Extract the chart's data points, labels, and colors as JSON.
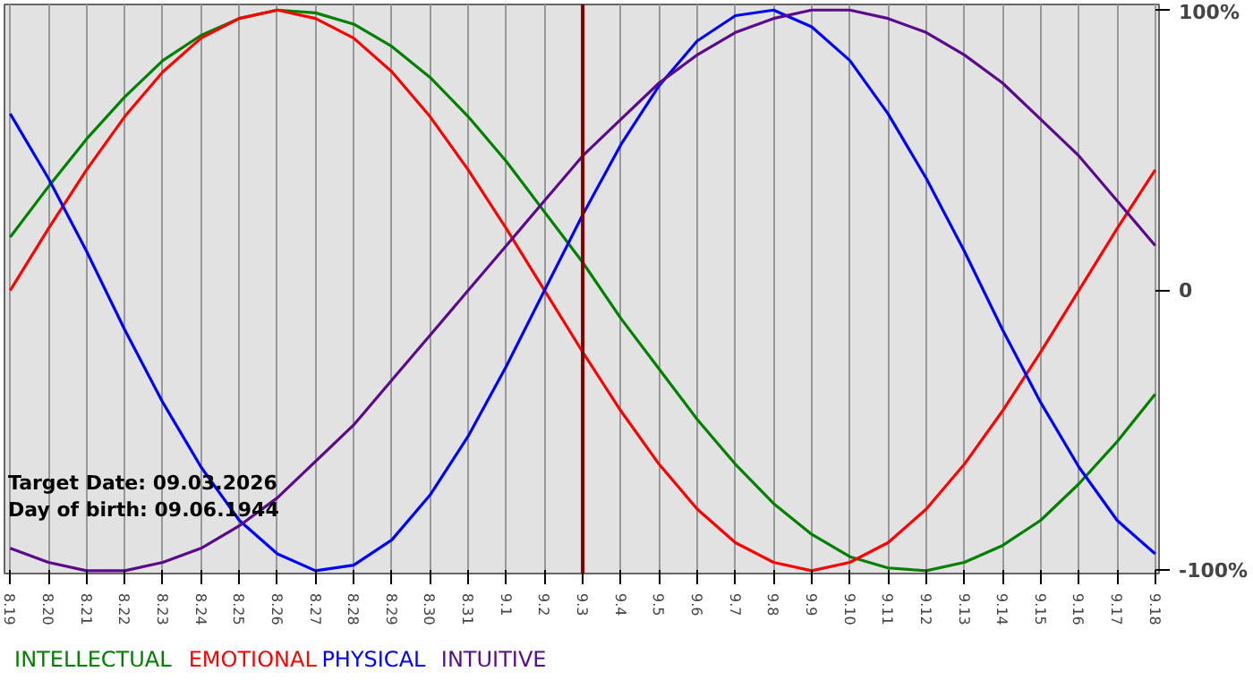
{
  "chart_data": {
    "type": "line",
    "categories": [
      "8.19",
      "8.20",
      "8.21",
      "8.22",
      "8.23",
      "8.24",
      "8.25",
      "8.26",
      "8.27",
      "8.28",
      "8.29",
      "8.30",
      "8.31",
      "9.1",
      "9.2",
      "9.3",
      "9.4",
      "9.5",
      "9.6",
      "9.7",
      "9.8",
      "9.9",
      "9.10",
      "9.11",
      "9.12",
      "9.13",
      "9.14",
      "9.15",
      "9.16",
      "9.17",
      "9.18"
    ],
    "series": [
      {
        "name": "INTELLECTUAL",
        "color": "#008000",
        "values": [
          19,
          37,
          54,
          69,
          82,
          91,
          97,
          100,
          99,
          95,
          87,
          76,
          62,
          46,
          28,
          10,
          -10,
          -28,
          -46,
          -62,
          -76,
          -87,
          -95,
          -99,
          -100,
          -97,
          -91,
          -82,
          -69,
          -54,
          -37
        ]
      },
      {
        "name": "EMOTIONAL",
        "color": "#ff0000",
        "values": [
          0,
          22,
          43,
          62,
          78,
          90,
          97,
          100,
          97,
          90,
          78,
          62,
          43,
          22,
          0,
          -22,
          -43,
          -62,
          -78,
          -90,
          -97,
          -100,
          -97,
          -90,
          -78,
          -62,
          -43,
          -22,
          0,
          22,
          43
        ]
      },
      {
        "name": "PHYSICAL",
        "color": "#0000ff",
        "values": [
          63,
          40,
          14,
          -14,
          -40,
          -63,
          -82,
          -94,
          -100,
          -98,
          -89,
          -73,
          -52,
          -27,
          0,
          27,
          52,
          73,
          89,
          98,
          100,
          94,
          82,
          63,
          40,
          14,
          -14,
          -40,
          -63,
          -82,
          -94
        ]
      },
      {
        "name": "INTUITIVE",
        "color": "#5a0a8a",
        "values": [
          -92,
          -97,
          -100,
          -100,
          -97,
          -92,
          -84,
          -74,
          -61,
          -48,
          -32,
          -16,
          0,
          16,
          32,
          48,
          61,
          74,
          84,
          92,
          97,
          100,
          100,
          97,
          92,
          84,
          74,
          61,
          48,
          32,
          16
        ]
      }
    ],
    "ylim": [
      -101,
      102
    ],
    "yticks": [
      {
        "value": 100,
        "label": "100%"
      },
      0,
      {
        "value": -100,
        "label": "-100%"
      }
    ],
    "ref_lines": [
      {
        "axis": "x",
        "value": "9.3",
        "color": "#800000"
      }
    ],
    "annotations": [
      "Target Date: 09.03.2026",
      "Day of birth: 09.06.1944"
    ],
    "grid": "x",
    "legend": "bottom"
  }
}
